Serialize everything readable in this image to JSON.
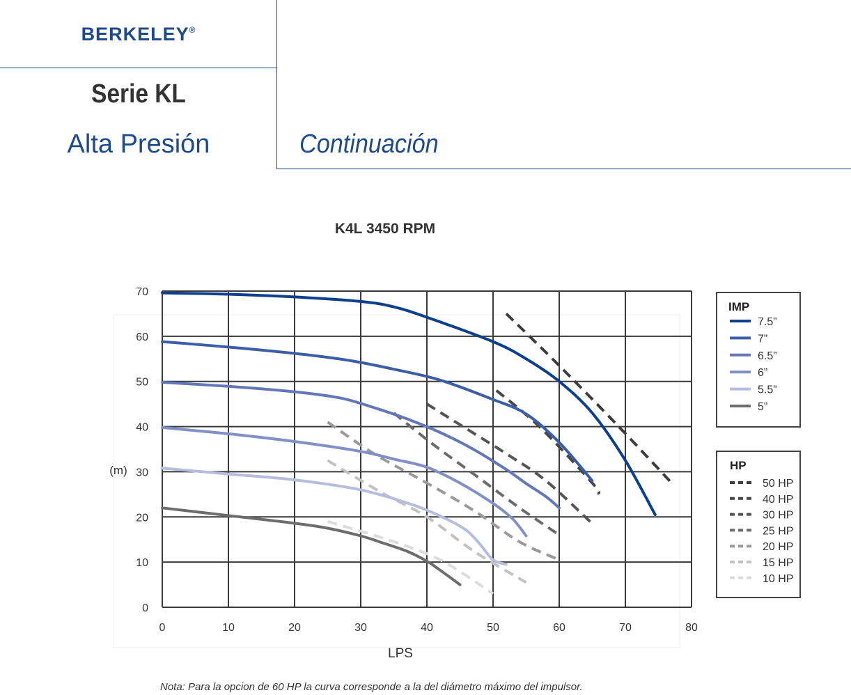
{
  "header": {
    "brand": "BERKELEY",
    "brand_mark": "®",
    "series": "Serie KL",
    "subtitle": "Alta Presión",
    "continuation": "Continuación"
  },
  "chart_title": "K4L 3450 RPM",
  "note": "Nota: Para la opcion de 60 HP la curva corresponde a la del diámetro máximo del impulsor.",
  "chart_data": {
    "type": "line",
    "title": "K4L 3450 RPM",
    "xlabel": "LPS",
    "ylabel": "(m)",
    "xlim": [
      0,
      80
    ],
    "ylim": [
      0,
      70
    ],
    "xticks": [
      0,
      10,
      20,
      30,
      40,
      50,
      60,
      70,
      80
    ],
    "yticks": [
      0,
      10,
      20,
      30,
      40,
      50,
      60,
      70
    ],
    "grid": true,
    "legends": [
      {
        "title": "IMP",
        "placement": "right",
        "entries": [
          "7.5”",
          "7”",
          "6.5”",
          "6”",
          "5.5”",
          "5”"
        ]
      },
      {
        "title": "HP",
        "placement": "right",
        "entries": [
          "50 HP",
          "40 HP",
          "30 HP",
          "25 HP",
          "20 HP",
          "15 HP",
          "10 HP"
        ]
      }
    ],
    "impeller_curves": [
      {
        "name": "7.5”",
        "color": "#0d3f8f",
        "points": [
          [
            0,
            69.6
          ],
          [
            10,
            69.3
          ],
          [
            20,
            68.7
          ],
          [
            30,
            67.7
          ],
          [
            35,
            66.5
          ],
          [
            40,
            64.2
          ],
          [
            50,
            58.8
          ],
          [
            55,
            55
          ],
          [
            60,
            50
          ],
          [
            65,
            43
          ],
          [
            70,
            32.5
          ],
          [
            74.5,
            20.5
          ]
        ]
      },
      {
        "name": "7”",
        "color": "#3a5ea8",
        "points": [
          [
            0,
            58.8
          ],
          [
            10,
            57.6
          ],
          [
            20,
            56.2
          ],
          [
            28,
            54.7
          ],
          [
            35,
            52.7
          ],
          [
            42,
            50.3
          ],
          [
            50,
            46
          ],
          [
            55,
            42.8
          ],
          [
            60,
            36.5
          ],
          [
            65,
            28
          ]
        ]
      },
      {
        "name": "6.5”",
        "color": "#6477b8",
        "points": [
          [
            0,
            49.8
          ],
          [
            10,
            48.9
          ],
          [
            20,
            47.7
          ],
          [
            27,
            46.3
          ],
          [
            32,
            44.2
          ],
          [
            37,
            41.7
          ],
          [
            42,
            38.7
          ],
          [
            47,
            35
          ],
          [
            52,
            30.5
          ],
          [
            55,
            27.4
          ],
          [
            58,
            24.5
          ],
          [
            60,
            22
          ]
        ]
      },
      {
        "name": "6”",
        "color": "#8190c6",
        "points": [
          [
            0,
            39.8
          ],
          [
            10,
            38.4
          ],
          [
            20,
            36.7
          ],
          [
            30,
            34.5
          ],
          [
            35,
            32.8
          ],
          [
            40,
            31
          ],
          [
            45,
            27.5
          ],
          [
            50,
            23
          ],
          [
            53,
            19.5
          ],
          [
            55,
            15.8
          ]
        ]
      },
      {
        "name": "5.5”",
        "color": "#b6bddf",
        "points": [
          [
            0,
            30.8
          ],
          [
            10,
            29.5
          ],
          [
            20,
            28.2
          ],
          [
            30,
            26
          ],
          [
            38,
            22.6
          ],
          [
            43,
            19.5
          ],
          [
            46,
            17
          ],
          [
            48,
            14
          ],
          [
            50,
            10.5
          ],
          [
            52,
            9.5
          ]
        ]
      },
      {
        "name": "5”",
        "color": "#6d6d6d",
        "points": [
          [
            0,
            22
          ],
          [
            10,
            20.3
          ],
          [
            20,
            18.6
          ],
          [
            25,
            17.5
          ],
          [
            30,
            15.8
          ],
          [
            33,
            14.4
          ],
          [
            37,
            12.4
          ],
          [
            40,
            10.2
          ],
          [
            42,
            8.2
          ],
          [
            45,
            5
          ]
        ]
      }
    ],
    "hp_lines": [
      {
        "name": "50 HP",
        "color": "#3d3d3d",
        "points": [
          [
            52,
            65
          ],
          [
            60,
            53.5
          ],
          [
            69,
            40
          ],
          [
            77,
            27.5
          ]
        ]
      },
      {
        "name": "40 HP",
        "color": "#474747",
        "points": [
          [
            50.5,
            48
          ],
          [
            57,
            40
          ],
          [
            65,
            27.5
          ],
          [
            66,
            25
          ]
        ]
      },
      {
        "name": "30 HP",
        "color": "#555555",
        "points": [
          [
            40,
            45
          ],
          [
            46,
            39.5
          ],
          [
            52,
            34
          ],
          [
            58,
            28
          ],
          [
            65,
            18.5
          ]
        ]
      },
      {
        "name": "25 HP",
        "color": "#6b6b6b",
        "points": [
          [
            35,
            43
          ],
          [
            41,
            36
          ],
          [
            48,
            28.5
          ],
          [
            54,
            22
          ],
          [
            60,
            16
          ]
        ]
      },
      {
        "name": "20 HP",
        "color": "#9a9a9a",
        "points": [
          [
            25,
            41
          ],
          [
            32,
            34
          ],
          [
            40,
            27.5
          ],
          [
            47,
            21.5
          ],
          [
            54,
            14.5
          ],
          [
            60,
            10.5
          ]
        ]
      },
      {
        "name": "15 HP",
        "color": "#c2c2c2",
        "points": [
          [
            25,
            32.5
          ],
          [
            33,
            25.5
          ],
          [
            40,
            20
          ],
          [
            47,
            12.5
          ],
          [
            55,
            5.5
          ]
        ]
      },
      {
        "name": "10 HP",
        "color": "#dcdcdc",
        "points": [
          [
            25,
            19
          ],
          [
            34,
            15
          ],
          [
            42,
            10.5
          ],
          [
            50,
            3
          ]
        ]
      }
    ]
  }
}
